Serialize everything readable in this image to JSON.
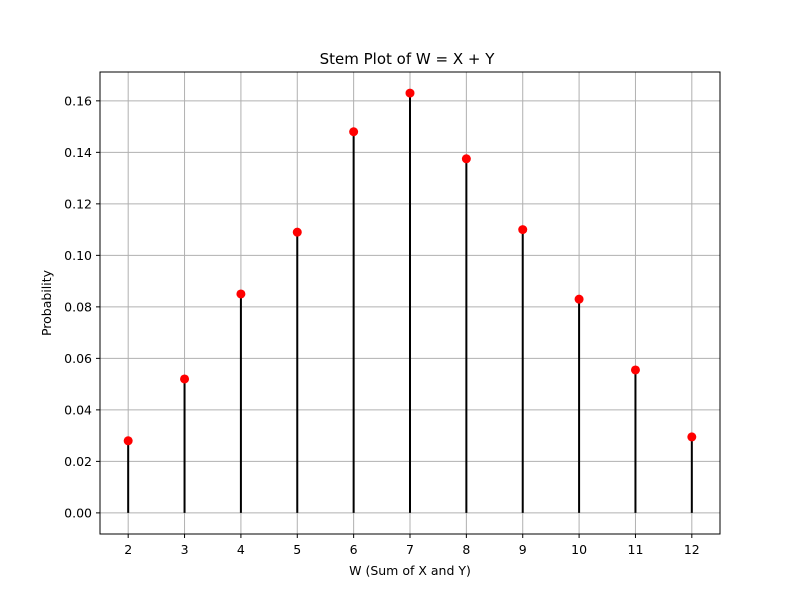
{
  "chart_data": {
    "type": "stem",
    "title": "Stem Plot of W = X + Y",
    "xlabel": "W (Sum of X and Y)",
    "ylabel": "Probability",
    "x": [
      2,
      3,
      4,
      5,
      6,
      7,
      8,
      9,
      10,
      11,
      12
    ],
    "values": [
      0.028,
      0.052,
      0.085,
      0.109,
      0.148,
      0.163,
      0.1375,
      0.11,
      0.083,
      0.0555,
      0.0295
    ],
    "xlim": [
      1.5,
      12.5
    ],
    "ylim": [
      -0.0082,
      0.1712
    ],
    "yticks": [
      0.0,
      0.02,
      0.04,
      0.06,
      0.08,
      0.1,
      0.12,
      0.14,
      0.16
    ],
    "ytick_labels": [
      "0.00",
      "0.02",
      "0.04",
      "0.06",
      "0.08",
      "0.10",
      "0.12",
      "0.14",
      "0.16"
    ],
    "xticks": [
      2,
      3,
      4,
      5,
      6,
      7,
      8,
      9,
      10,
      11,
      12
    ],
    "xtick_labels": [
      "2",
      "3",
      "4",
      "5",
      "6",
      "7",
      "8",
      "9",
      "10",
      "11",
      "12"
    ],
    "grid": true,
    "stem_color": "#000000",
    "marker_color": "#ff0000",
    "grid_color": "#b0b0b0"
  }
}
